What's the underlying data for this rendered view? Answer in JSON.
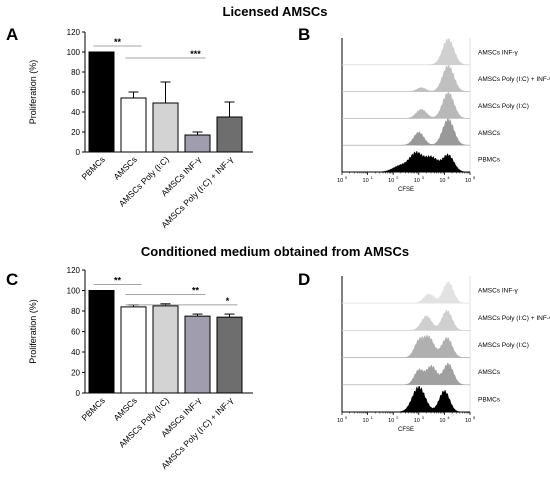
{
  "titles": {
    "top": "Licensed AMSCs",
    "bottom": "Conditioned medium obtained from AMSCs"
  },
  "panels": {
    "a": "A",
    "b": "B",
    "c": "C",
    "d": "D"
  },
  "chart_data": [
    {
      "id": "A",
      "type": "bar",
      "ylabel": "Proliferation (%)",
      "ylim": [
        0,
        120
      ],
      "yticks": [
        0,
        20,
        40,
        60,
        80,
        100,
        120
      ],
      "ytick_labels": [
        "0",
        "20",
        "40",
        "60",
        "80",
        "100",
        "120"
      ],
      "categories": [
        "PBMCs",
        "AMSCs",
        "AMSCs Poly (I:C)",
        "AMSCs INF-γ",
        "AMSCs Poly (I:C) + INF-γ"
      ],
      "values": [
        100,
        54,
        49,
        17,
        35
      ],
      "errors": [
        0,
        6,
        21,
        3,
        15
      ],
      "colors": [
        "#000000",
        "#ffffff",
        "#d3d3d3",
        "#a09eae",
        "#6e6e6e"
      ],
      "significance": [
        {
          "from": 0,
          "to": 1,
          "label": "**",
          "y": 106
        },
        {
          "from": 1,
          "to": 3,
          "label": "***",
          "y": 94
        }
      ]
    },
    {
      "id": "C",
      "type": "bar",
      "ylabel": "Proliferation (%)",
      "ylim": [
        0,
        120
      ],
      "yticks": [
        0,
        20,
        40,
        60,
        80,
        100,
        120
      ],
      "ytick_labels": [
        "0",
        "20",
        "40",
        "60",
        "80",
        "100",
        "120"
      ],
      "categories": [
        "PBMCs",
        "AMSCs",
        "AMSCs Poly (I:C)",
        "AMSCs INF-γ",
        "AMSCs Poly (I:C) + INF-γ"
      ],
      "values": [
        100,
        84,
        85,
        75,
        74
      ],
      "errors": [
        0,
        2,
        2,
        2,
        3
      ],
      "colors": [
        "#000000",
        "#ffffff",
        "#d3d3d3",
        "#a09eae",
        "#6e6e6e"
      ],
      "significance": [
        {
          "from": 0,
          "to": 1,
          "label": "**",
          "y": 106
        },
        {
          "from": 1,
          "to": 3,
          "label": "**",
          "y": 96
        },
        {
          "from": 1,
          "to": 4,
          "label": "*",
          "y": 86
        }
      ]
    },
    {
      "id": "B",
      "type": "area",
      "xlabel": "CFSE",
      "xtick_labels": [
        "10",
        "10",
        "10",
        "10",
        "10",
        "10"
      ],
      "xtick_exponents": [
        "0",
        "1",
        "2",
        "3",
        "4",
        "5"
      ],
      "tracks": [
        {
          "name": "AMSCs INF-γ",
          "color": "#d0d0d0",
          "peaks": [
            [
              4.15,
              0.22,
              1.0
            ]
          ]
        },
        {
          "name": "AMSCs Poly (I:C) + INF-γ",
          "color": "#c0c0c0",
          "peaks": [
            [
              3.1,
              0.18,
              0.15
            ],
            [
              4.15,
              0.22,
              1.0
            ]
          ]
        },
        {
          "name": "AMSCs Poly (I:C)",
          "color": "#b8b8b8",
          "peaks": [
            [
              3.1,
              0.2,
              0.35
            ],
            [
              4.15,
              0.22,
              1.0
            ]
          ]
        },
        {
          "name": "AMSCs",
          "color": "#999999",
          "peaks": [
            [
              3.0,
              0.2,
              0.5
            ],
            [
              4.15,
              0.22,
              1.0
            ]
          ]
        },
        {
          "name": "PBMCs",
          "color": "#000000",
          "peaks": [
            [
              2.3,
              0.3,
              0.25
            ],
            [
              2.9,
              0.25,
              0.7
            ],
            [
              3.5,
              0.25,
              0.55
            ],
            [
              4.15,
              0.22,
              0.65
            ]
          ]
        }
      ]
    },
    {
      "id": "D",
      "type": "area",
      "xlabel": "CFSE",
      "xtick_labels": [
        "10",
        "10",
        "10",
        "10",
        "10",
        "10"
      ],
      "xtick_exponents": [
        "0",
        "1",
        "2",
        "3",
        "4",
        "5"
      ],
      "tracks": [
        {
          "name": "AMSCs INF-γ",
          "color": "#e2e2e2",
          "peaks": [
            [
              3.4,
              0.2,
              0.35
            ],
            [
              4.15,
              0.2,
              0.8
            ]
          ]
        },
        {
          "name": "AMSCs Poly (I:C) + INF-γ",
          "color": "#cfcfcf",
          "peaks": [
            [
              3.3,
              0.2,
              0.55
            ],
            [
              4.1,
              0.2,
              0.75
            ]
          ]
        },
        {
          "name": "AMSCs Poly (I:C)",
          "color": "#b0b0b0",
          "peaks": [
            [
              3.0,
              0.18,
              0.6
            ],
            [
              3.4,
              0.2,
              0.75
            ],
            [
              4.1,
              0.2,
              0.75
            ]
          ]
        },
        {
          "name": "AMSCs",
          "color": "#a0a0a0",
          "peaks": [
            [
              3.0,
              0.18,
              0.55
            ],
            [
              3.5,
              0.2,
              0.7
            ],
            [
              4.15,
              0.2,
              0.8
            ]
          ]
        },
        {
          "name": "PBMCs",
          "color": "#000000",
          "peaks": [
            [
              3.0,
              0.25,
              0.95
            ],
            [
              4.0,
              0.2,
              0.8
            ]
          ]
        }
      ]
    }
  ]
}
